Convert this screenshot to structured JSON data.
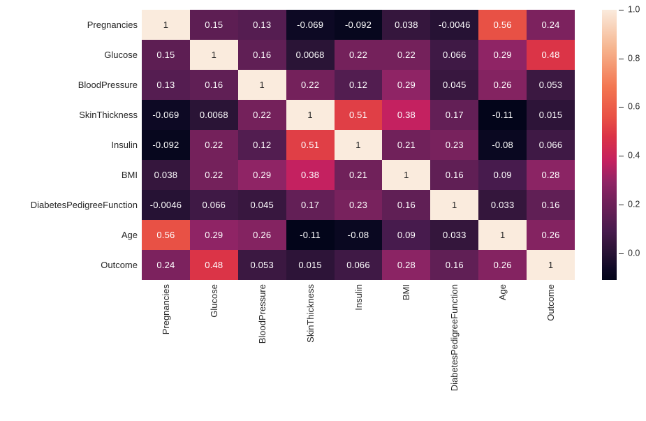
{
  "chart_data": {
    "type": "heatmap",
    "title": "",
    "xlabel": "",
    "ylabel": "",
    "categories": [
      "Pregnancies",
      "Glucose",
      "BloodPressure",
      "SkinThickness",
      "Insulin",
      "BMI",
      "DiabetesPedigreeFunction",
      "Age",
      "Outcome"
    ],
    "values": [
      [
        1,
        0.15,
        0.13,
        -0.069,
        -0.092,
        0.038,
        -0.0046,
        0.56,
        0.24
      ],
      [
        0.15,
        1,
        0.16,
        0.0068,
        0.22,
        0.22,
        0.066,
        0.29,
        0.48
      ],
      [
        0.13,
        0.16,
        1,
        0.22,
        0.12,
        0.29,
        0.045,
        0.26,
        0.053
      ],
      [
        -0.069,
        0.0068,
        0.22,
        1,
        0.51,
        0.38,
        0.17,
        -0.11,
        0.015
      ],
      [
        -0.092,
        0.22,
        0.12,
        0.51,
        1,
        0.21,
        0.23,
        -0.08,
        0.066
      ],
      [
        0.038,
        0.22,
        0.29,
        0.38,
        0.21,
        1,
        0.16,
        0.09,
        0.28
      ],
      [
        -0.0046,
        0.066,
        0.045,
        0.17,
        0.23,
        0.16,
        1,
        0.033,
        0.16
      ],
      [
        0.56,
        0.29,
        0.26,
        -0.11,
        -0.08,
        0.09,
        0.033,
        1,
        0.26
      ],
      [
        0.24,
        0.48,
        0.053,
        0.015,
        0.066,
        0.28,
        0.16,
        0.26,
        1
      ]
    ],
    "cell_labels": [
      [
        "1",
        "0.15",
        "0.13",
        "-0.069",
        "-0.092",
        "0.038",
        "-0.0046",
        "0.56",
        "0.24"
      ],
      [
        "0.15",
        "1",
        "0.16",
        "0.0068",
        "0.22",
        "0.22",
        "0.066",
        "0.29",
        "0.48"
      ],
      [
        "0.13",
        "0.16",
        "1",
        "0.22",
        "0.12",
        "0.29",
        "0.045",
        "0.26",
        "0.053"
      ],
      [
        "-0.069",
        "0.0068",
        "0.22",
        "1",
        "0.51",
        "0.38",
        "0.17",
        "-0.11",
        "0.015"
      ],
      [
        "-0.092",
        "0.22",
        "0.12",
        "0.51",
        "1",
        "0.21",
        "0.23",
        "-0.08",
        "0.066"
      ],
      [
        "0.038",
        "0.22",
        "0.29",
        "0.38",
        "0.21",
        "1",
        "0.16",
        "0.09",
        "0.28"
      ],
      [
        "-0.0046",
        "0.066",
        "0.045",
        "0.17",
        "0.23",
        "0.16",
        "1",
        "0.033",
        "0.16"
      ],
      [
        "0.56",
        "0.29",
        "0.26",
        "-0.11",
        "-0.08",
        "0.09",
        "0.033",
        "1",
        "0.26"
      ],
      [
        "0.24",
        "0.48",
        "0.053",
        "0.015",
        "0.066",
        "0.28",
        "0.16",
        "0.26",
        "1"
      ]
    ],
    "vmin": -0.11,
    "vmax": 1.0,
    "grid": false,
    "legend_position": "right",
    "colormap": {
      "name": "rocket",
      "stops": [
        [
          0.0,
          "#03051A"
        ],
        [
          0.04,
          "#0E0925"
        ],
        [
          0.1,
          "#281335"
        ],
        [
          0.14,
          "#38173F"
        ],
        [
          0.18,
          "#471B4D"
        ],
        [
          0.23,
          "#5B1E53"
        ],
        [
          0.29,
          "#71215A"
        ],
        [
          0.36,
          "#8F2465"
        ],
        [
          0.44,
          "#C42160"
        ],
        [
          0.53,
          "#DB3347"
        ],
        [
          0.6,
          "#E85045"
        ],
        [
          0.714,
          "#F37651"
        ],
        [
          0.857,
          "#F6B48E"
        ],
        [
          1.0,
          "#FAEBDD"
        ]
      ]
    },
    "colorbar": {
      "tick_labels": [
        "1.0",
        "0.8",
        "0.6",
        "0.4",
        "0.2",
        "0.0"
      ],
      "tick_values": [
        1.0,
        0.8,
        0.6,
        0.4,
        0.2,
        0.0
      ]
    },
    "colors": {
      "annotation_light": "#FFFFFF",
      "annotation_dark": "#262626",
      "axis_label": "#262626",
      "background": "#FFFFFF"
    }
  }
}
